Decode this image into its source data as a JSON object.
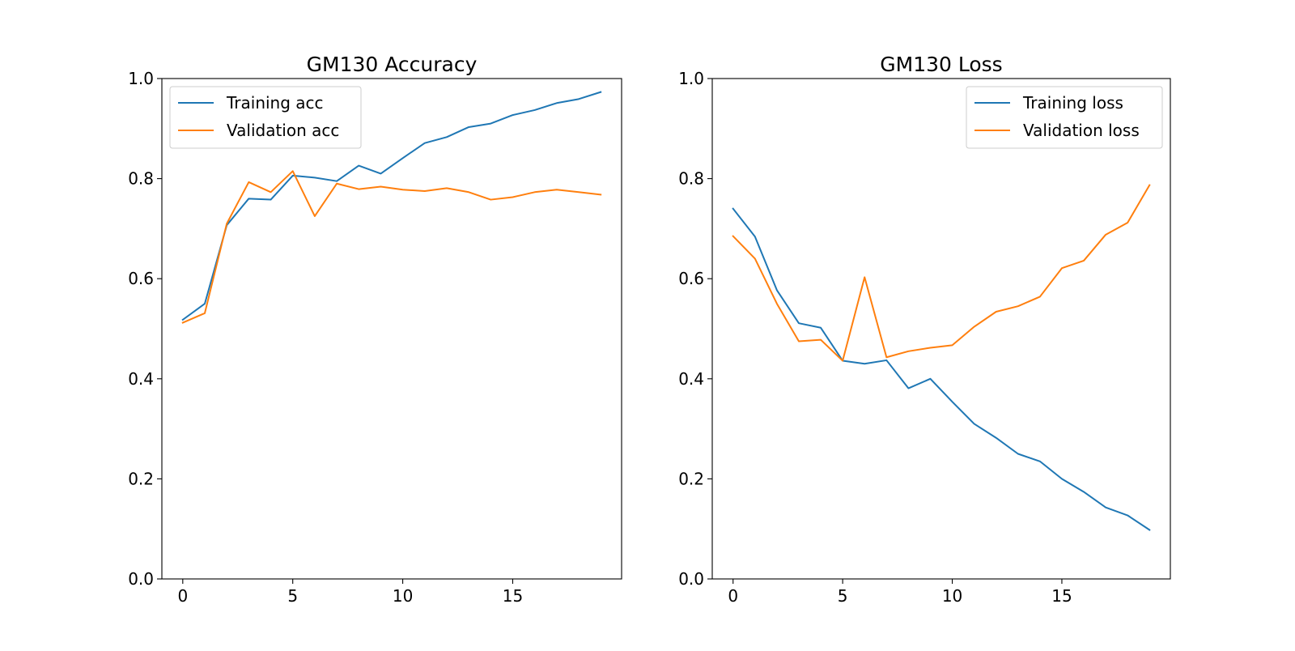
{
  "colors": {
    "training": "#1f77b4",
    "validation": "#ff7f0e"
  },
  "chart_data": [
    {
      "type": "line",
      "title": "GM130 Accuracy",
      "xlabel": "",
      "ylabel": "",
      "xlim": [
        -0.95,
        19.95
      ],
      "ylim": [
        0.0,
        1.0
      ],
      "xticks": [
        "0",
        "5",
        "10",
        "15"
      ],
      "yticks": [
        "0.0",
        "0.2",
        "0.4",
        "0.6",
        "0.8",
        "1.0"
      ],
      "grid": false,
      "legend_position": "upper left",
      "x": [
        0,
        1,
        2,
        3,
        4,
        5,
        6,
        7,
        8,
        9,
        10,
        11,
        12,
        13,
        14,
        15,
        16,
        17,
        18,
        19
      ],
      "series": [
        {
          "name": "Training acc",
          "color": "#1f77b4",
          "values": [
            0.518,
            0.55,
            0.707,
            0.76,
            0.758,
            0.806,
            0.802,
            0.795,
            0.826,
            0.81,
            0.841,
            0.871,
            0.883,
            0.903,
            0.91,
            0.927,
            0.937,
            0.951,
            0.959,
            0.973
          ]
        },
        {
          "name": "Validation acc",
          "color": "#ff7f0e",
          "values": [
            0.512,
            0.531,
            0.71,
            0.793,
            0.773,
            0.815,
            0.725,
            0.79,
            0.779,
            0.784,
            0.778,
            0.775,
            0.781,
            0.773,
            0.758,
            0.763,
            0.773,
            0.778,
            0.773,
            0.768
          ]
        }
      ]
    },
    {
      "type": "line",
      "title": "GM130 Loss",
      "xlabel": "",
      "ylabel": "",
      "xlim": [
        -0.95,
        19.95
      ],
      "ylim": [
        0.0,
        1.0
      ],
      "xticks": [
        "0",
        "5",
        "10",
        "15"
      ],
      "yticks": [
        "0.0",
        "0.2",
        "0.4",
        "0.6",
        "0.8",
        "1.0"
      ],
      "grid": false,
      "legend_position": "upper right",
      "x": [
        0,
        1,
        2,
        3,
        4,
        5,
        6,
        7,
        8,
        9,
        10,
        11,
        12,
        13,
        14,
        15,
        16,
        17,
        18,
        19
      ],
      "series": [
        {
          "name": "Training loss",
          "color": "#1f77b4",
          "values": [
            0.74,
            0.684,
            0.577,
            0.511,
            0.502,
            0.436,
            0.43,
            0.437,
            0.381,
            0.4,
            0.354,
            0.31,
            0.282,
            0.25,
            0.235,
            0.2,
            0.174,
            0.143,
            0.127,
            0.098
          ]
        },
        {
          "name": "Validation loss",
          "color": "#ff7f0e",
          "values": [
            0.685,
            0.64,
            0.55,
            0.475,
            0.478,
            0.436,
            0.603,
            0.443,
            0.455,
            0.462,
            0.467,
            0.504,
            0.534,
            0.545,
            0.564,
            0.621,
            0.636,
            0.688,
            0.712,
            0.787
          ]
        }
      ]
    }
  ]
}
